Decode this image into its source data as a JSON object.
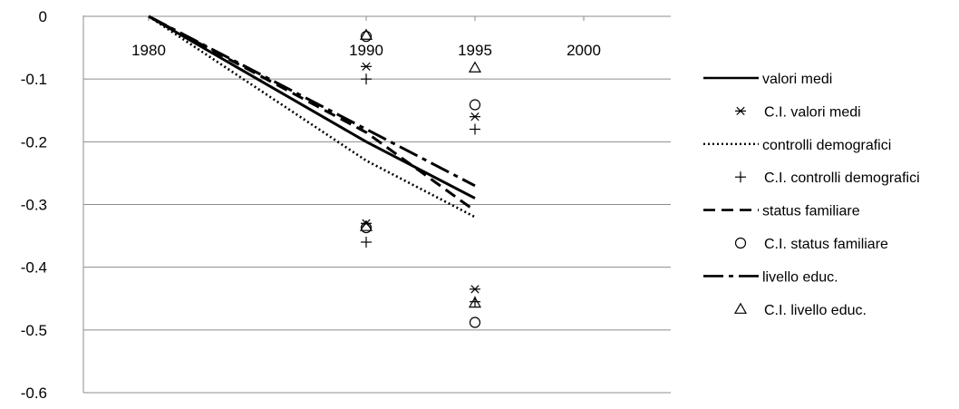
{
  "chart_data": {
    "type": "line",
    "title": "",
    "xlabel": "",
    "ylabel": "",
    "xlim": [
      1977,
      2004
    ],
    "ylim": [
      -0.6,
      0
    ],
    "x_ticks": [
      1980,
      1990,
      1995,
      2000
    ],
    "y_ticks": [
      0,
      -0.1,
      -0.2,
      -0.3,
      -0.4,
      -0.5,
      -0.6
    ],
    "x_tick_labels": [
      "1980",
      "1990",
      "1995",
      "2000"
    ],
    "y_tick_labels": [
      "0",
      "-0.1",
      "-0.2",
      "-0.3",
      "-0.4",
      "-0.5",
      "-0.6"
    ],
    "grid": "horizontal",
    "legend_position": "right",
    "series": [
      {
        "name": "valori medi",
        "kind": "line",
        "dash": "solid",
        "x": [
          1980,
          1990,
          1995
        ],
        "y": [
          0,
          -0.2,
          -0.29
        ]
      },
      {
        "name": "C.I. valori medi",
        "kind": "marker",
        "marker": "asterisk",
        "x": [
          1990,
          1990,
          1995,
          1995
        ],
        "y": [
          -0.08,
          -0.33,
          -0.16,
          -0.435
        ]
      },
      {
        "name": "controlli demografici",
        "kind": "line",
        "dash": "dotted",
        "x": [
          1980,
          1990,
          1995
        ],
        "y": [
          0,
          -0.23,
          -0.32
        ]
      },
      {
        "name": "C.I. controlli demografici",
        "kind": "marker",
        "marker": "plus",
        "x": [
          1990,
          1990,
          1995,
          1995
        ],
        "y": [
          -0.1,
          -0.36,
          -0.18,
          -0.455
        ]
      },
      {
        "name": "status familiare",
        "kind": "line",
        "dash": "dashed",
        "x": [
          1980,
          1990,
          1995
        ],
        "y": [
          0,
          -0.185,
          -0.31
        ]
      },
      {
        "name": "C.I. status familiare",
        "kind": "marker",
        "marker": "circle",
        "x": [
          1990,
          1990,
          1995,
          1995
        ],
        "y": [
          -0.032,
          -0.337,
          -0.141,
          -0.488
        ]
      },
      {
        "name": "livello educ.",
        "kind": "line",
        "dash": "dashdot",
        "x": [
          1980,
          1990,
          1995
        ],
        "y": [
          0,
          -0.18,
          -0.27
        ]
      },
      {
        "name": "C.I. livello educ.",
        "kind": "marker",
        "marker": "triangle",
        "x": [
          1990,
          1990,
          1995,
          1995
        ],
        "y": [
          -0.03,
          -0.335,
          -0.082,
          -0.457
        ]
      }
    ]
  }
}
